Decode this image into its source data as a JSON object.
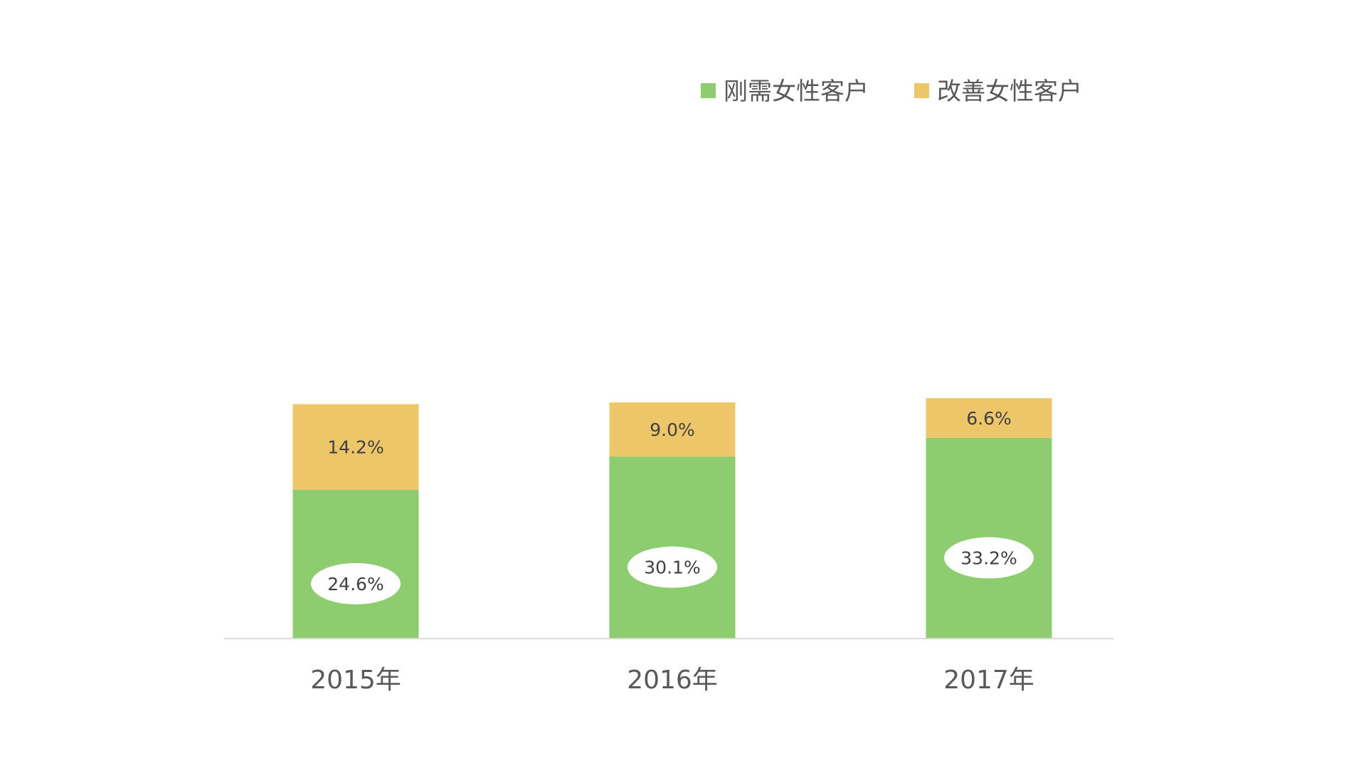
{
  "chart_data": {
    "type": "bar",
    "stacked": true,
    "categories": [
      "2015年",
      "2016年",
      "2017年"
    ],
    "series": [
      {
        "name": "刚需女性客户",
        "values": [
          24.6,
          30.1,
          33.2
        ],
        "labels": [
          "24.6%",
          "30.1%",
          "33.2%"
        ],
        "color": "#8dcd70",
        "label_style": "white-ellipse"
      },
      {
        "name": "改善女性客户",
        "values": [
          14.2,
          9.0,
          6.6
        ],
        "labels": [
          "14.2%",
          "9.0%",
          "6.6%"
        ],
        "color": "#eec66a",
        "label_style": "plain"
      }
    ],
    "ylim": [
      0,
      40
    ],
    "grid": false,
    "legend_position": "top-right",
    "axis_color": "#d9d9d9"
  }
}
